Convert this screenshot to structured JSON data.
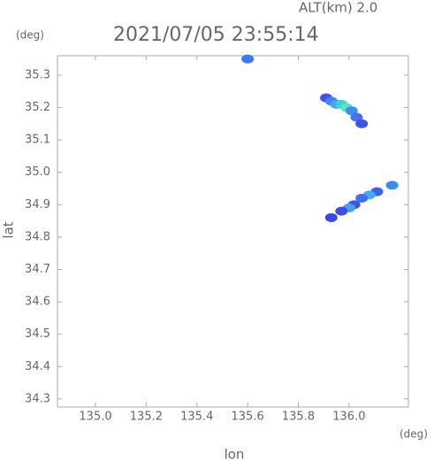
{
  "chart_data": {
    "type": "scatter",
    "title": "2021/07/05 23:55:14",
    "subtitle": "ALT(km) 2.0",
    "x_label": "lon",
    "y_label": "lat",
    "x_unit": "(deg)",
    "y_unit": "(deg)",
    "x": [
      135.6,
      135.91,
      135.93,
      135.95,
      135.97,
      135.99,
      136.01,
      136.03,
      136.05,
      136.17,
      136.11,
      136.08,
      136.05,
      136.02,
      136.0,
      135.97,
      135.93
    ],
    "y": [
      35.35,
      35.23,
      35.22,
      35.21,
      35.21,
      35.2,
      35.19,
      35.17,
      35.15,
      34.96,
      34.94,
      34.93,
      34.92,
      34.9,
      34.89,
      34.88,
      34.86
    ],
    "point_colors": [
      "#3a7bf5",
      "#3f52e8",
      "#4a7ff2",
      "#3fa6f2",
      "#39d0d8",
      "#5fe0c8",
      "#3f8ff2",
      "#4a6ff0",
      "#3a55ea",
      "#3a8cf0",
      "#3f60ea",
      "#49a8f0",
      "#3f6ff0",
      "#3f55e8",
      "#4aa0ee",
      "#3a4fe6",
      "#3a48e4"
    ],
    "xlim": [
      134.85,
      136.234
    ],
    "ylim": [
      34.275,
      35.36
    ],
    "xticks": [
      {
        "value": 135.0,
        "label": "135.0"
      },
      135.2,
      135.4,
      135.6,
      135.8,
      {
        "value": 136.0,
        "label": "136.0"
      }
    ],
    "yticks": [
      34.3,
      34.4,
      34.5,
      34.6,
      34.7,
      34.8,
      34.9,
      {
        "value": 35.0,
        "label": "35.0"
      },
      35.1,
      35.2,
      35.3
    ]
  }
}
